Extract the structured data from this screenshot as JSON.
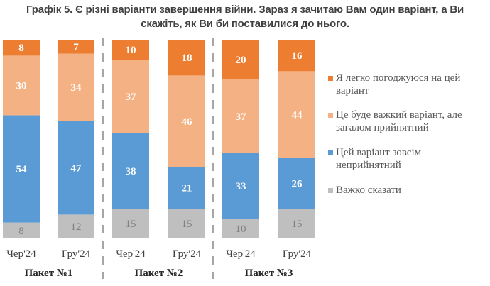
{
  "chart_data": {
    "type": "bar",
    "stacked": true,
    "title_lines": [
      "Графік 5. Є різні варіанти завершення війни. Зараз я зачитаю Вам один варіант, а Ви",
      "скажіть, як Ви би поставилися до нього."
    ],
    "xlabel": "",
    "ylabel": "",
    "ylim": [
      0,
      100
    ],
    "grid": false,
    "legend_position": "right",
    "categories": [
      "Чер'24",
      "Гру'24",
      "Чер'24",
      "Гру'24",
      "Чер'24",
      "Гру'24"
    ],
    "groups": [
      {
        "label": "Пакет №1",
        "categories": [
          0,
          1
        ]
      },
      {
        "label": "Пакет №2",
        "categories": [
          2,
          3
        ]
      },
      {
        "label": "Пакет №3",
        "categories": [
          4,
          5
        ]
      }
    ],
    "series": [
      {
        "name": "Я легко погоджуюся на цей варіант",
        "color": "#ED7D31",
        "label_color": "#FFFFFF",
        "values": [
          8,
          7,
          10,
          18,
          20,
          16
        ]
      },
      {
        "name": "Це буде важкий варіант, але загалом прийнятний",
        "color": "#F4B183",
        "label_color": "#FFFFFF",
        "values": [
          30,
          34,
          37,
          46,
          37,
          44
        ]
      },
      {
        "name": "Цей варіант зовсім неприйнятний",
        "color": "#5B9BD5",
        "label_color": "#FFFFFF",
        "values": [
          54,
          47,
          38,
          21,
          33,
          26
        ]
      },
      {
        "name": "Важко сказати",
        "color": "#BFBFBF",
        "label_color": "#7F7F7F",
        "values": [
          8,
          12,
          15,
          15,
          10,
          15
        ]
      }
    ]
  }
}
